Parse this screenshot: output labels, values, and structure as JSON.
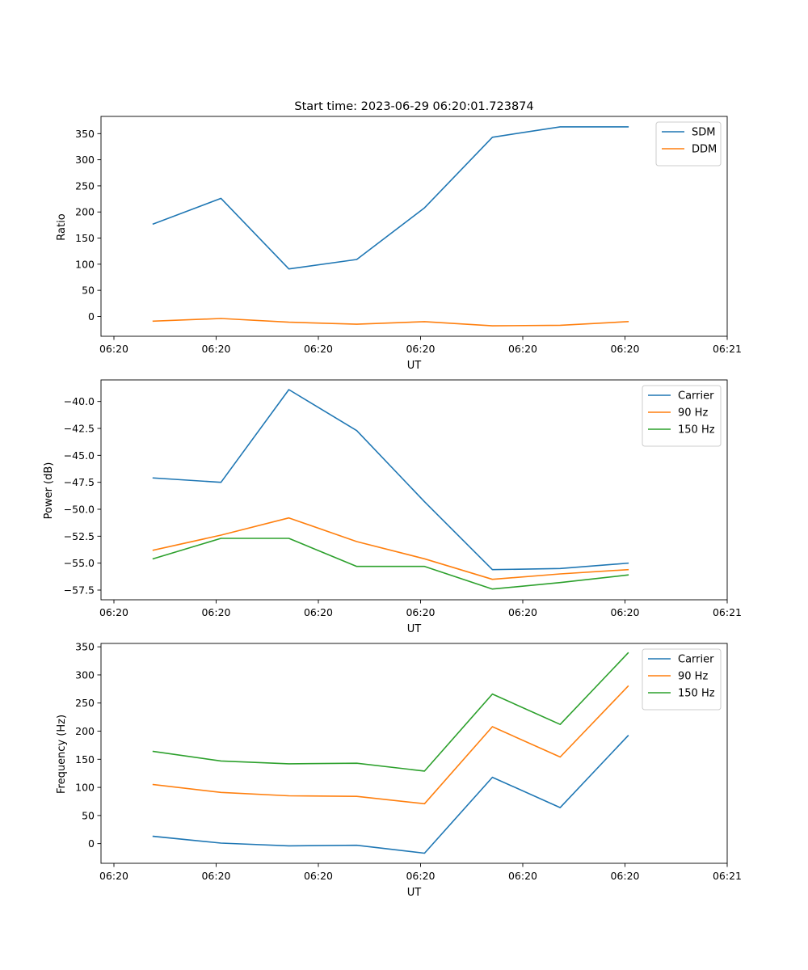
{
  "colors": {
    "blue": "#1f77b4",
    "orange": "#ff7f0e",
    "green": "#2ca02c"
  },
  "chart_data": [
    {
      "type": "line",
      "title": "Start time: 2023-06-29 06:20:01.723874",
      "xlabel": "UT",
      "ylabel": "Ratio",
      "x_ticks": [
        "06:20",
        "06:20",
        "06:20",
        "06:20",
        "06:20",
        "06:20",
        "06:21"
      ],
      "y_ticks": [
        "0",
        "50",
        "100",
        "150",
        "200",
        "250",
        "300",
        "350"
      ],
      "y_tick_values": [
        0,
        50,
        100,
        150,
        200,
        250,
        300,
        350
      ],
      "ylim": [
        -38,
        383
      ],
      "xlim": [
        -0.5,
        5.5
      ],
      "legend": "top-right",
      "x": [
        0,
        0.65,
        1.3,
        1.95,
        2.6,
        3.25,
        3.9,
        4.55
      ],
      "series": [
        {
          "name": "SDM",
          "color": "#1f77b4",
          "values": [
            177,
            226,
            91,
            109,
            208,
            343,
            363,
            363
          ]
        },
        {
          "name": "DDM",
          "color": "#ff7f0e",
          "values": [
            -9,
            -4,
            -11,
            -15,
            -10,
            -18,
            -17,
            -10
          ]
        }
      ]
    },
    {
      "type": "line",
      "title": "",
      "xlabel": "UT",
      "ylabel": "Power (dB)",
      "x_ticks": [
        "06:20",
        "06:20",
        "06:20",
        "06:20",
        "06:20",
        "06:20",
        "06:21"
      ],
      "y_ticks": [
        "−40.0",
        "−42.5",
        "−45.0",
        "−47.5",
        "−50.0",
        "−52.5",
        "−55.0",
        "−57.5"
      ],
      "y_tick_values": [
        -40,
        -42.5,
        -45,
        -47.5,
        -50,
        -52.5,
        -55,
        -57.5
      ],
      "ylim": [
        -58.4,
        -38.0
      ],
      "xlim": [
        -0.5,
        5.5
      ],
      "legend": "top-right",
      "x": [
        0,
        0.65,
        1.3,
        1.95,
        2.6,
        3.25,
        3.9,
        4.55
      ],
      "series": [
        {
          "name": "Carrier",
          "color": "#1f77b4",
          "values": [
            -47.1,
            -47.5,
            -38.9,
            -42.7,
            -49.3,
            -55.6,
            -55.5,
            -55.0
          ]
        },
        {
          "name": "90 Hz",
          "color": "#ff7f0e",
          "values": [
            -53.8,
            -52.4,
            -50.8,
            -53.0,
            -54.6,
            -56.5,
            -56.0,
            -55.6
          ]
        },
        {
          "name": "150 Hz",
          "color": "#2ca02c",
          "values": [
            -54.6,
            -52.7,
            -52.7,
            -55.3,
            -55.3,
            -57.4,
            -56.8,
            -56.1
          ]
        }
      ]
    },
    {
      "type": "line",
      "title": "",
      "xlabel": "UT",
      "ylabel": "Frequency (Hz)",
      "x_ticks": [
        "06:20",
        "06:20",
        "06:20",
        "06:20",
        "06:20",
        "06:20",
        "06:21"
      ],
      "y_ticks": [
        "0",
        "50",
        "100",
        "150",
        "200",
        "250",
        "300",
        "350"
      ],
      "y_tick_values": [
        0,
        50,
        100,
        150,
        200,
        250,
        300,
        350
      ],
      "ylim": [
        -35,
        356
      ],
      "xlim": [
        -0.5,
        5.5
      ],
      "legend": "top-right",
      "x": [
        0,
        0.65,
        1.3,
        1.95,
        2.6,
        3.25,
        3.9,
        4.55
      ],
      "series": [
        {
          "name": "Carrier",
          "color": "#1f77b4",
          "values": [
            13,
            1,
            -4,
            -3,
            -17,
            118,
            64,
            192
          ]
        },
        {
          "name": "90 Hz",
          "color": "#ff7f0e",
          "values": [
            105,
            91,
            85,
            84,
            71,
            208,
            154,
            280
          ]
        },
        {
          "name": "150 Hz",
          "color": "#2ca02c",
          "values": [
            164,
            147,
            142,
            143,
            129,
            266,
            212,
            339
          ]
        }
      ]
    }
  ]
}
